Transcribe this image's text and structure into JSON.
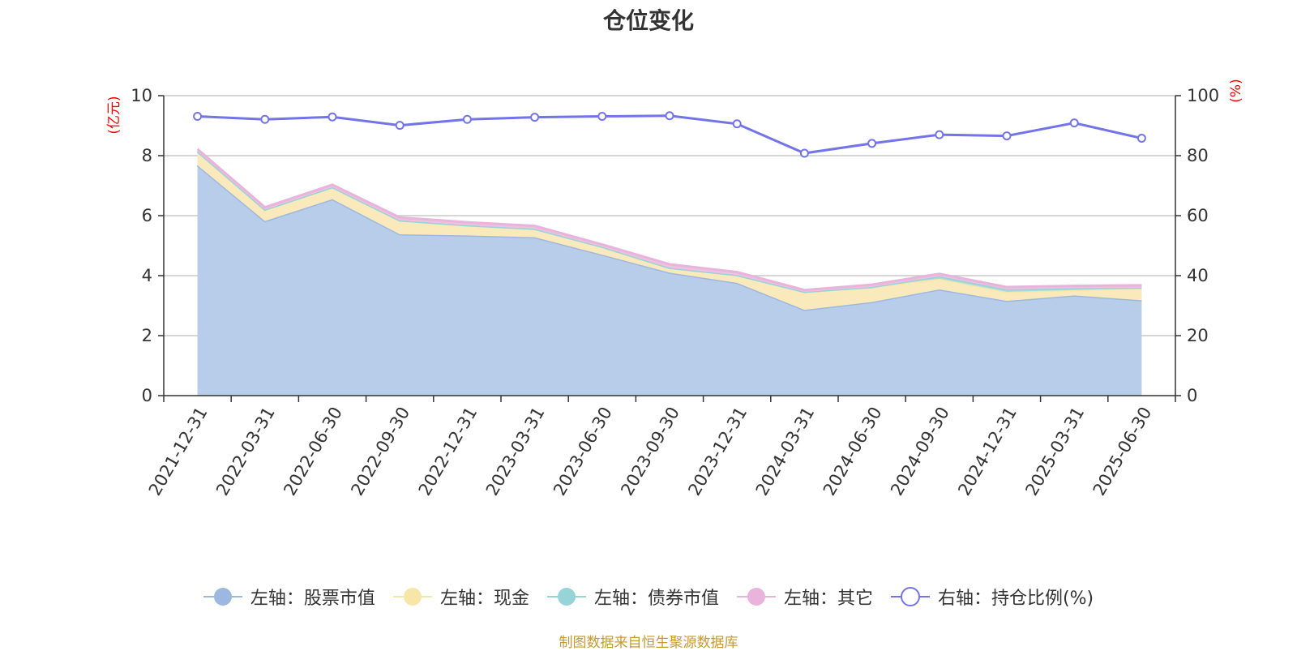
{
  "title": "仓位变化",
  "source_note": "制图数据来自恒生聚源数据库",
  "chart_data": {
    "type": "area",
    "title": "仓位变化",
    "x": [
      "2021-12-31",
      "2022-03-31",
      "2022-06-30",
      "2022-09-30",
      "2022-12-31",
      "2023-03-31",
      "2023-06-30",
      "2023-09-30",
      "2023-12-31",
      "2024-03-31",
      "2024-06-30",
      "2024-09-30",
      "2024-12-31",
      "2025-03-31",
      "2025-06-30"
    ],
    "left_axis": {
      "label": "(亿元)",
      "ylim": [
        0,
        10
      ],
      "ticks": [
        0,
        2,
        4,
        6,
        8,
        10
      ]
    },
    "right_axis": {
      "label": "(%)",
      "ylim": [
        0,
        100
      ],
      "ticks": [
        0,
        20,
        40,
        60,
        80,
        100
      ]
    },
    "grid": true,
    "legend_position": "bottom",
    "stacked": true,
    "series": [
      {
        "name": "左轴：股票市值",
        "axis": "left",
        "type": "area",
        "color": "#9db8e0",
        "fill": "#b8cdea",
        "values": [
          7.68,
          5.82,
          6.55,
          5.38,
          5.34,
          5.28,
          4.7,
          4.1,
          3.76,
          2.86,
          3.12,
          3.54,
          3.16,
          3.34,
          3.18
        ]
      },
      {
        "name": "左轴：现金",
        "axis": "left",
        "type": "area",
        "color": "#f8e5a8",
        "fill": "#faeabb",
        "values": [
          0.46,
          0.38,
          0.4,
          0.46,
          0.34,
          0.28,
          0.26,
          0.16,
          0.26,
          0.6,
          0.5,
          0.36,
          0.3,
          0.18,
          0.4
        ]
      },
      {
        "name": "左轴：债券市值",
        "axis": "left",
        "type": "area",
        "color": "#96d4d8",
        "fill": "#a8dcdc",
        "values": [
          0.0,
          0.0,
          0.0,
          0.0,
          0.0,
          0.0,
          0.0,
          0.0,
          0.0,
          0.0,
          0.0,
          0.08,
          0.08,
          0.06,
          0.02
        ]
      },
      {
        "name": "左轴：其它",
        "axis": "left",
        "type": "area",
        "color": "#e9b4dc",
        "fill": "#efc0e2",
        "values": [
          0.08,
          0.08,
          0.08,
          0.1,
          0.1,
          0.1,
          0.08,
          0.12,
          0.1,
          0.06,
          0.08,
          0.08,
          0.08,
          0.08,
          0.08
        ]
      },
      {
        "name": "右轴：持仓比例(%)",
        "axis": "right",
        "type": "line",
        "color": "#7373ea",
        "values": [
          93.1,
          92.1,
          92.9,
          90.1,
          92.1,
          92.8,
          93.1,
          93.3,
          90.6,
          80.8,
          84.1,
          87.0,
          86.6,
          90.9,
          85.8
        ]
      }
    ]
  }
}
